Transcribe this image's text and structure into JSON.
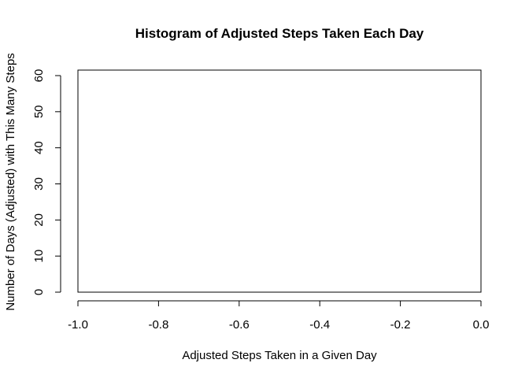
{
  "chart_data": {
    "type": "bar",
    "title": "Histogram of Adjusted Steps Taken Each Day",
    "xlabel": "Adjusted Steps Taken in a Given Day",
    "ylabel": "Number of Days (Adjusted) with This Many Steps",
    "xlim": [
      -1.0,
      0.0
    ],
    "ylim": [
      0,
      60
    ],
    "x_ticks": [
      "-1.0",
      "-0.8",
      "-0.6",
      "-0.4",
      "-0.2",
      "0.0"
    ],
    "y_ticks": [
      "0",
      "10",
      "20",
      "30",
      "40",
      "50",
      "60"
    ],
    "bins": [],
    "values": [],
    "grid": false
  }
}
